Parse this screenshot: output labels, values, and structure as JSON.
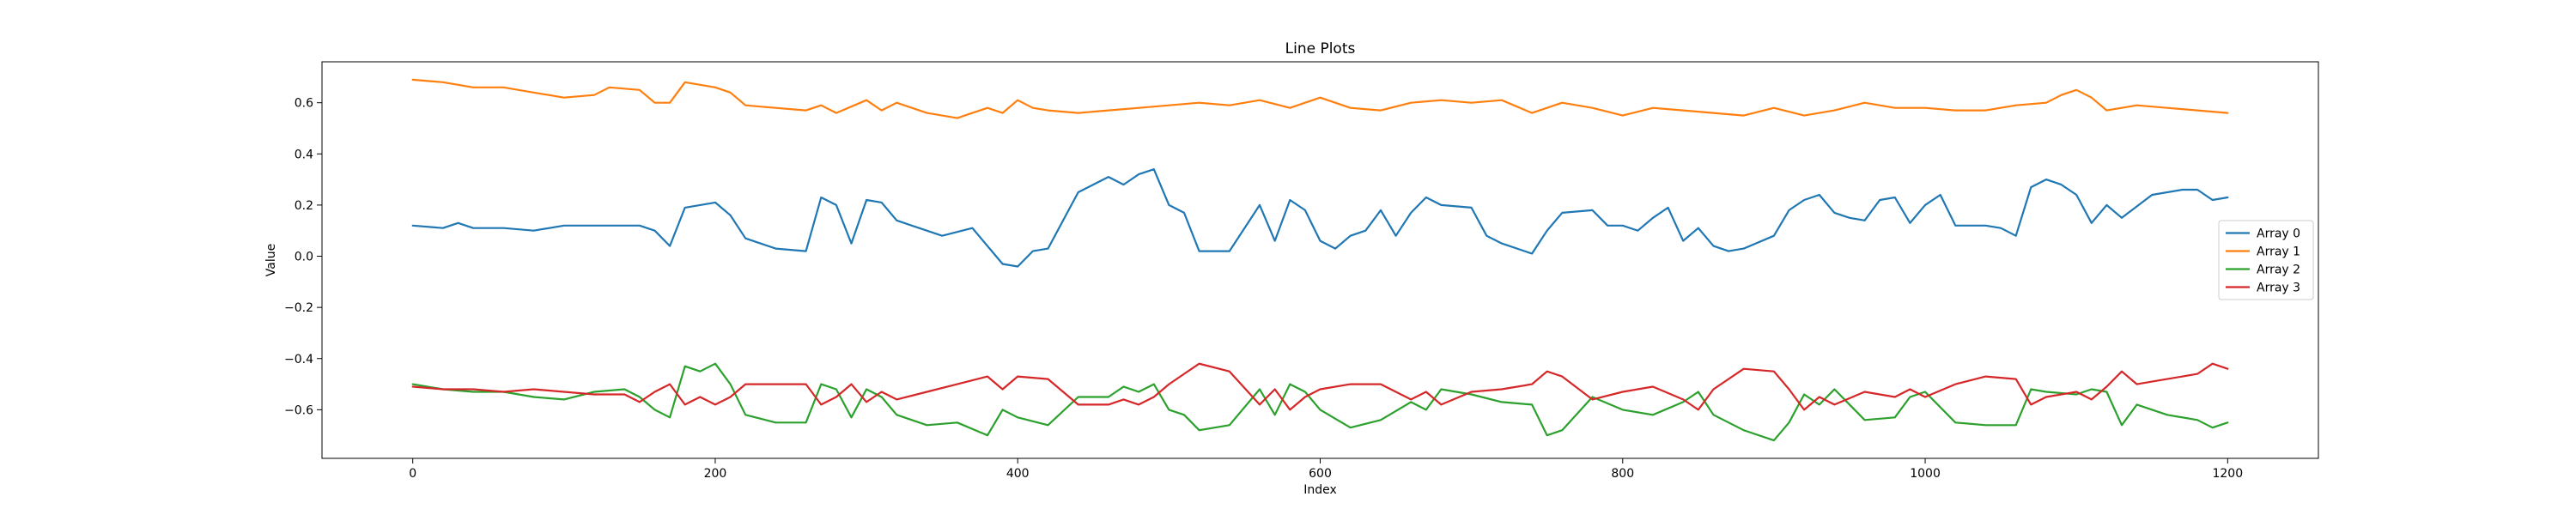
{
  "chart_data": {
    "type": "line",
    "title": "Line Plots",
    "xlabel": "Index",
    "ylabel": "Value",
    "xlim": [
      -60,
      1260
    ],
    "ylim": [
      -0.79,
      0.76
    ],
    "xticks": [
      0,
      200,
      400,
      600,
      800,
      1000,
      1200
    ],
    "yticks": [
      -0.6,
      -0.4,
      -0.2,
      0.0,
      0.2,
      0.4,
      0.6
    ],
    "xtick_labels": [
      "0",
      "200",
      "400",
      "600",
      "800",
      "1000",
      "1200"
    ],
    "ytick_labels": [
      "−0.6",
      "−0.4",
      "−0.2",
      "0.0",
      "0.2",
      "0.4",
      "0.6"
    ],
    "legend_position": "center-right",
    "grid": false,
    "series": [
      {
        "name": "Array 0",
        "color": "#1f77b4",
        "x": [
          0,
          20,
          30,
          40,
          60,
          80,
          100,
          130,
          150,
          160,
          170,
          180,
          190,
          200,
          210,
          220,
          240,
          260,
          270,
          280,
          290,
          300,
          310,
          320,
          330,
          350,
          370,
          390,
          400,
          410,
          420,
          440,
          460,
          470,
          480,
          490,
          500,
          510,
          520,
          540,
          560,
          570,
          580,
          590,
          600,
          610,
          620,
          630,
          640,
          650,
          660,
          670,
          680,
          700,
          710,
          720,
          740,
          750,
          760,
          780,
          790,
          800,
          810,
          820,
          830,
          840,
          850,
          860,
          870,
          880,
          900,
          910,
          920,
          930,
          940,
          950,
          960,
          970,
          980,
          990,
          1000,
          1010,
          1020,
          1030,
          1040,
          1050,
          1060,
          1070,
          1080,
          1090,
          1100,
          1110,
          1120,
          1130,
          1150,
          1170,
          1180,
          1190,
          1200
        ],
        "y": [
          0.12,
          0.11,
          0.13,
          0.11,
          0.11,
          0.1,
          0.12,
          0.12,
          0.12,
          0.1,
          0.04,
          0.19,
          0.2,
          0.21,
          0.16,
          0.07,
          0.03,
          0.02,
          0.23,
          0.2,
          0.05,
          0.22,
          0.21,
          0.14,
          0.12,
          0.08,
          0.11,
          -0.03,
          -0.04,
          0.02,
          0.03,
          0.25,
          0.31,
          0.28,
          0.32,
          0.34,
          0.2,
          0.17,
          0.02,
          0.02,
          0.2,
          0.06,
          0.22,
          0.18,
          0.06,
          0.03,
          0.08,
          0.1,
          0.18,
          0.08,
          0.17,
          0.23,
          0.2,
          0.19,
          0.08,
          0.05,
          0.01,
          0.1,
          0.17,
          0.18,
          0.12,
          0.12,
          0.1,
          0.15,
          0.19,
          0.06,
          0.11,
          0.04,
          0.02,
          0.03,
          0.08,
          0.18,
          0.22,
          0.24,
          0.17,
          0.15,
          0.14,
          0.22,
          0.23,
          0.13,
          0.2,
          0.24,
          0.12,
          0.12,
          0.12,
          0.11,
          0.08,
          0.27,
          0.3,
          0.28,
          0.24,
          0.13,
          0.2,
          0.15,
          0.24,
          0.26,
          0.26,
          0.22,
          0.23
        ]
      },
      {
        "name": "Array 1",
        "color": "#ff7f0e",
        "x": [
          0,
          20,
          30,
          40,
          60,
          80,
          100,
          120,
          130,
          150,
          160,
          170,
          180,
          190,
          200,
          210,
          220,
          240,
          260,
          270,
          280,
          300,
          310,
          320,
          340,
          360,
          370,
          380,
          390,
          400,
          410,
          420,
          440,
          460,
          480,
          500,
          520,
          540,
          560,
          580,
          600,
          620,
          640,
          660,
          680,
          700,
          720,
          740,
          760,
          780,
          800,
          820,
          840,
          860,
          880,
          900,
          920,
          940,
          960,
          980,
          1000,
          1020,
          1040,
          1060,
          1080,
          1090,
          1100,
          1110,
          1120,
          1140,
          1160,
          1180,
          1200
        ],
        "y": [
          0.69,
          0.68,
          0.67,
          0.66,
          0.66,
          0.64,
          0.62,
          0.63,
          0.66,
          0.65,
          0.6,
          0.6,
          0.68,
          0.67,
          0.66,
          0.64,
          0.59,
          0.58,
          0.57,
          0.59,
          0.56,
          0.61,
          0.57,
          0.6,
          0.56,
          0.54,
          0.56,
          0.58,
          0.56,
          0.61,
          0.58,
          0.57,
          0.56,
          0.57,
          0.58,
          0.59,
          0.6,
          0.59,
          0.61,
          0.58,
          0.62,
          0.58,
          0.57,
          0.6,
          0.61,
          0.6,
          0.61,
          0.56,
          0.6,
          0.58,
          0.55,
          0.58,
          0.57,
          0.56,
          0.55,
          0.58,
          0.55,
          0.57,
          0.6,
          0.58,
          0.58,
          0.57,
          0.57,
          0.59,
          0.6,
          0.63,
          0.65,
          0.62,
          0.57,
          0.59,
          0.58,
          0.57,
          0.56
        ]
      },
      {
        "name": "Array 2",
        "color": "#2ca02c",
        "x": [
          0,
          20,
          40,
          60,
          80,
          100,
          120,
          140,
          150,
          160,
          170,
          180,
          190,
          200,
          210,
          220,
          240,
          260,
          270,
          280,
          290,
          300,
          310,
          320,
          340,
          360,
          380,
          390,
          400,
          420,
          440,
          460,
          470,
          480,
          490,
          500,
          510,
          520,
          540,
          560,
          570,
          580,
          590,
          600,
          620,
          640,
          660,
          670,
          680,
          700,
          720,
          740,
          750,
          760,
          780,
          800,
          820,
          840,
          850,
          860,
          880,
          900,
          910,
          920,
          930,
          940,
          960,
          980,
          990,
          1000,
          1020,
          1040,
          1060,
          1070,
          1080,
          1100,
          1110,
          1120,
          1130,
          1140,
          1160,
          1180,
          1190,
          1200
        ],
        "y": [
          -0.5,
          -0.52,
          -0.53,
          -0.53,
          -0.55,
          -0.56,
          -0.53,
          -0.52,
          -0.55,
          -0.6,
          -0.63,
          -0.43,
          -0.45,
          -0.42,
          -0.5,
          -0.62,
          -0.65,
          -0.65,
          -0.5,
          -0.52,
          -0.63,
          -0.52,
          -0.55,
          -0.62,
          -0.66,
          -0.65,
          -0.7,
          -0.6,
          -0.63,
          -0.66,
          -0.55,
          -0.55,
          -0.51,
          -0.53,
          -0.5,
          -0.6,
          -0.62,
          -0.68,
          -0.66,
          -0.52,
          -0.62,
          -0.5,
          -0.53,
          -0.6,
          -0.67,
          -0.64,
          -0.57,
          -0.6,
          -0.52,
          -0.54,
          -0.57,
          -0.58,
          -0.7,
          -0.68,
          -0.55,
          -0.6,
          -0.62,
          -0.57,
          -0.53,
          -0.62,
          -0.68,
          -0.72,
          -0.65,
          -0.54,
          -0.58,
          -0.52,
          -0.64,
          -0.63,
          -0.55,
          -0.53,
          -0.65,
          -0.66,
          -0.66,
          -0.52,
          -0.53,
          -0.54,
          -0.52,
          -0.53,
          -0.66,
          -0.58,
          -0.62,
          -0.64,
          -0.67,
          -0.65
        ]
      },
      {
        "name": "Array 3",
        "color": "#d62728",
        "x": [
          0,
          20,
          40,
          60,
          80,
          100,
          120,
          140,
          150,
          160,
          170,
          180,
          190,
          200,
          210,
          220,
          240,
          260,
          270,
          280,
          290,
          300,
          310,
          320,
          340,
          360,
          380,
          390,
          400,
          420,
          440,
          460,
          470,
          480,
          490,
          500,
          510,
          520,
          540,
          560,
          570,
          580,
          590,
          600,
          620,
          640,
          660,
          670,
          680,
          700,
          720,
          740,
          750,
          760,
          780,
          800,
          820,
          840,
          850,
          860,
          880,
          900,
          910,
          920,
          930,
          940,
          960,
          980,
          990,
          1000,
          1020,
          1040,
          1060,
          1070,
          1080,
          1100,
          1110,
          1120,
          1130,
          1140,
          1160,
          1180,
          1190,
          1200
        ],
        "y": [
          -0.51,
          -0.52,
          -0.52,
          -0.53,
          -0.52,
          -0.53,
          -0.54,
          -0.54,
          -0.57,
          -0.53,
          -0.5,
          -0.58,
          -0.55,
          -0.58,
          -0.55,
          -0.5,
          -0.5,
          -0.5,
          -0.58,
          -0.55,
          -0.5,
          -0.57,
          -0.53,
          -0.56,
          -0.53,
          -0.5,
          -0.47,
          -0.52,
          -0.47,
          -0.48,
          -0.58,
          -0.58,
          -0.56,
          -0.58,
          -0.55,
          -0.5,
          -0.46,
          -0.42,
          -0.45,
          -0.58,
          -0.52,
          -0.6,
          -0.55,
          -0.52,
          -0.5,
          -0.5,
          -0.56,
          -0.53,
          -0.58,
          -0.53,
          -0.52,
          -0.5,
          -0.45,
          -0.47,
          -0.56,
          -0.53,
          -0.51,
          -0.56,
          -0.6,
          -0.52,
          -0.44,
          -0.45,
          -0.52,
          -0.6,
          -0.55,
          -0.58,
          -0.53,
          -0.55,
          -0.52,
          -0.55,
          -0.5,
          -0.47,
          -0.48,
          -0.58,
          -0.55,
          -0.53,
          -0.56,
          -0.51,
          -0.45,
          -0.5,
          -0.48,
          -0.46,
          -0.42,
          -0.44
        ]
      }
    ]
  }
}
